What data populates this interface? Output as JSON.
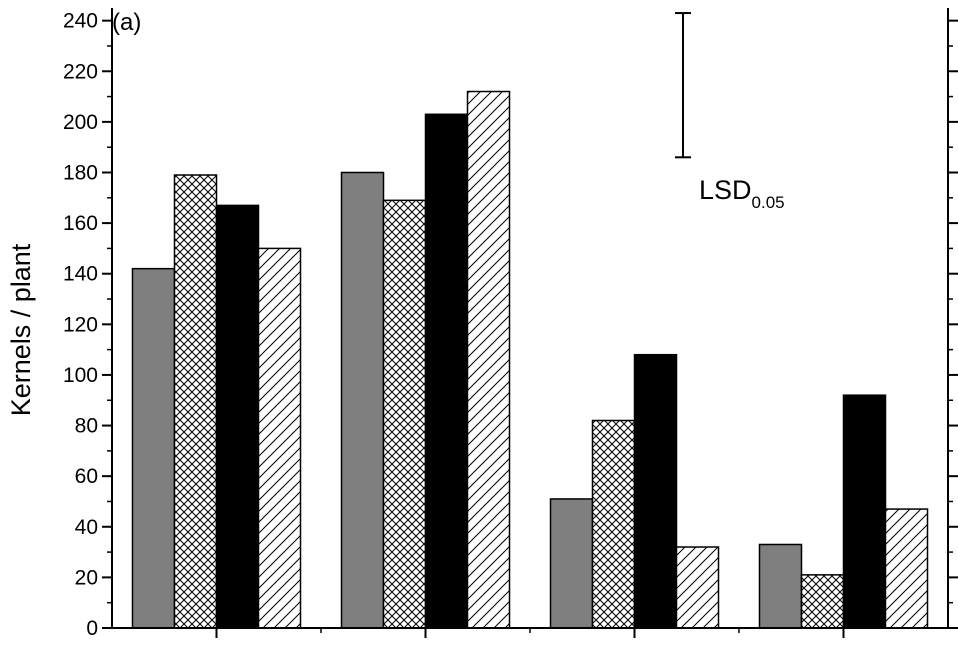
{
  "chart_data": {
    "type": "bar",
    "panel_label": "(a)",
    "title": "",
    "xlabel": "",
    "ylabel": "Kernels / plant",
    "ylim": [
      0,
      245
    ],
    "yticks": [
      0,
      20,
      40,
      60,
      80,
      100,
      120,
      140,
      160,
      180,
      200,
      220,
      240
    ],
    "grid": false,
    "legend": "none",
    "groups": 4,
    "series": [
      {
        "pattern": "solid-gray",
        "color": "#7f7f7f",
        "values": [
          142,
          180,
          51,
          33
        ]
      },
      {
        "pattern": "crosshatch",
        "color": "#000000",
        "values": [
          179,
          169,
          82,
          21
        ]
      },
      {
        "pattern": "solid-black",
        "color": "#000000",
        "values": [
          167,
          203,
          108,
          92
        ]
      },
      {
        "pattern": "diagonal",
        "color": "#000000",
        "values": [
          150,
          212,
          32,
          47
        ]
      }
    ],
    "lsd": {
      "label": "LSD",
      "subscript": "0.05",
      "low": 186,
      "high": 243
    }
  }
}
